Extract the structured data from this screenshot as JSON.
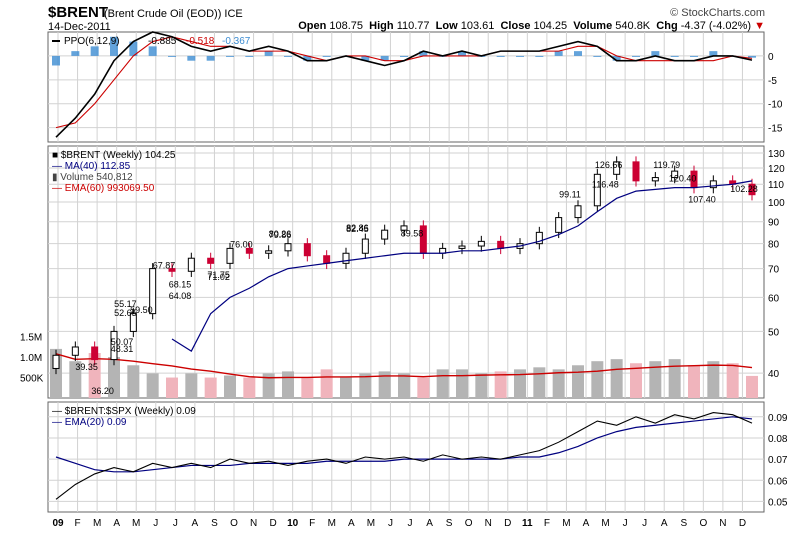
{
  "header": {
    "ticker": "$BRENT",
    "subtitle": "(Brent Crude Oil (EOD)) ICE",
    "date": "14-Dec-2011",
    "brand": "© StockCharts.com",
    "open_label": "Open",
    "open": "108.75",
    "high_label": "High",
    "high": "110.77",
    "low_label": "Low",
    "low": "103.61",
    "close_label": "Close",
    "close": "104.25",
    "volume_label": "Volume",
    "volume": "540.8K",
    "chg_label": "Chg",
    "chg": "-4.37 (-4.02%)",
    "chg_arrow": "▼"
  },
  "colors": {
    "up": "#000000",
    "down": "#cc0033",
    "ma": "#000080",
    "ema": "#cc0000",
    "vol_up": "#b4b4b4",
    "vol_down": "#f0b4bc",
    "hist": "#3c8cd2",
    "grid": "#d2d2d2"
  },
  "chart_data": [
    {
      "type": "line",
      "title": "PPO(6,12,9)",
      "legend": [
        {
          "name": "PPO(6,12,9)",
          "value": "-0.885"
        },
        {
          "name": "signal",
          "value": "-0.518"
        },
        {
          "name": "histogram",
          "value": "-0.367"
        }
      ],
      "ylim": [
        -18,
        5
      ],
      "yticks": [
        "0",
        "-5",
        "-10",
        "-15"
      ],
      "x": [
        0,
        4,
        8,
        12,
        16,
        20,
        24,
        28,
        32,
        36,
        40,
        44,
        48,
        52,
        56,
        60,
        64,
        68,
        72,
        76,
        80,
        84,
        88,
        92,
        96,
        100,
        104,
        108,
        112,
        116,
        120,
        124,
        128,
        132,
        136,
        140,
        144
      ],
      "series": [
        {
          "name": "PPO",
          "values": [
            -17,
            -13,
            -8,
            -1,
            3,
            5,
            4,
            2,
            1,
            2,
            1,
            2,
            1,
            -1,
            -1,
            0,
            -1,
            -2,
            -1,
            1,
            0,
            1,
            0,
            1,
            1,
            1,
            2,
            3,
            2,
            -1,
            -1,
            0,
            -1,
            -1,
            0,
            0,
            -0.885
          ]
        },
        {
          "name": "Signal",
          "values": [
            -15,
            -14,
            -10,
            -5,
            0,
            3,
            4,
            3,
            2,
            2,
            1,
            1,
            1,
            0,
            -1,
            0,
            0,
            -1,
            -1,
            0,
            0,
            0,
            0,
            1,
            1,
            1,
            1,
            2,
            2,
            0,
            -1,
            -1,
            -1,
            -1,
            -1,
            0,
            -0.518
          ]
        },
        {
          "name": "Histogram",
          "values": [
            -2,
            1,
            2,
            4,
            3,
            2,
            0,
            -1,
            -1,
            0,
            0,
            1,
            0,
            -1,
            0,
            0,
            -1,
            -1,
            0,
            1,
            0,
            1,
            0,
            0,
            0,
            0,
            1,
            1,
            0,
            -1,
            0,
            1,
            0,
            0,
            1,
            0,
            -0.367
          ]
        }
      ]
    },
    {
      "type": "candlestick",
      "title": "$BRENT (Weekly) 104.25",
      "legend": [
        {
          "name": "$BRENT (Weekly)",
          "value": "104.25"
        },
        {
          "name": "MA(40)",
          "value": "112.85"
        },
        {
          "name": "Volume",
          "value": "540,812"
        },
        {
          "name": "EMA(60)",
          "value": "993069.50"
        }
      ],
      "ylim": [
        35,
        135
      ],
      "yticks": [
        "130",
        "120",
        "110",
        "100",
        "90",
        "80",
        "70",
        "60",
        "50",
        "40"
      ],
      "volume_ticks": [
        "1.5M",
        "1.0M",
        "500K"
      ],
      "x": [
        0,
        4,
        8,
        12,
        16,
        20,
        24,
        28,
        32,
        36,
        40,
        44,
        48,
        52,
        56,
        60,
        64,
        68,
        72,
        76,
        80,
        84,
        88,
        92,
        96,
        100,
        104,
        108,
        112,
        116,
        120,
        124,
        128,
        132,
        136,
        140,
        144
      ],
      "close": [
        44,
        46,
        43,
        50,
        55,
        70,
        69,
        74,
        72,
        78,
        76,
        77,
        80,
        75,
        72,
        76,
        82,
        86,
        88,
        76,
        78,
        79,
        81,
        78,
        80,
        85,
        92,
        98,
        116,
        124,
        112,
        114,
        118,
        108,
        112,
        110,
        104
      ],
      "ma40": [
        null,
        null,
        null,
        null,
        null,
        null,
        48,
        45,
        55,
        60,
        63,
        67,
        70,
        71,
        72,
        73,
        74,
        75,
        76,
        76,
        76,
        77,
        77,
        78,
        79,
        81,
        84,
        88,
        95,
        102,
        106,
        107,
        108,
        108,
        109,
        110,
        112
      ],
      "volume_k": [
        1200,
        900,
        1100,
        1000,
        800,
        600,
        500,
        600,
        500,
        550,
        500,
        600,
        650,
        500,
        700,
        500,
        600,
        650,
        600,
        500,
        700,
        700,
        600,
        650,
        700,
        750,
        700,
        800,
        900,
        950,
        850,
        900,
        950,
        800,
        900,
        850,
        540
      ],
      "annotations": [
        "52.65",
        "50.07",
        "55.17",
        "48.31",
        "39.35",
        "36.20",
        "76.00",
        "59.50",
        "80.26",
        "64.08",
        "82.45",
        "71.02",
        "67.87",
        "89.58",
        "79.86",
        "68.15",
        "82.86",
        "71.75",
        "119.79",
        "107.40",
        "126.66",
        "120.40",
        "102.28",
        "116.48",
        "99.11"
      ]
    },
    {
      "type": "line",
      "title": "$BRENT:$SPX (Weekly) 0.09",
      "legend": [
        {
          "name": "$BRENT:$SPX (Weekly)",
          "value": "0.09"
        },
        {
          "name": "EMA(20)",
          "value": "0.09"
        }
      ],
      "ylim": [
        0.045,
        0.097
      ],
      "yticks": [
        "0.09",
        "0.08",
        "0.07",
        "0.06",
        "0.05"
      ],
      "x": [
        0,
        4,
        8,
        12,
        16,
        20,
        24,
        28,
        32,
        36,
        40,
        44,
        48,
        52,
        56,
        60,
        64,
        68,
        72,
        76,
        80,
        84,
        88,
        92,
        96,
        100,
        104,
        108,
        112,
        116,
        120,
        124,
        128,
        132,
        136,
        140,
        144
      ],
      "series": [
        {
          "name": "Ratio",
          "values": [
            0.051,
            0.058,
            0.063,
            0.066,
            0.064,
            0.068,
            0.066,
            0.068,
            0.066,
            0.07,
            0.068,
            0.069,
            0.067,
            0.069,
            0.07,
            0.068,
            0.071,
            0.07,
            0.071,
            0.069,
            0.072,
            0.07,
            0.071,
            0.07,
            0.072,
            0.074,
            0.078,
            0.083,
            0.088,
            0.086,
            0.09,
            0.087,
            0.091,
            0.089,
            0.092,
            0.091,
            0.087
          ]
        },
        {
          "name": "EMA(20)",
          "values": [
            0.071,
            0.068,
            0.065,
            0.064,
            0.064,
            0.065,
            0.066,
            0.067,
            0.067,
            0.067,
            0.068,
            0.068,
            0.068,
            0.068,
            0.069,
            0.069,
            0.069,
            0.069,
            0.07,
            0.07,
            0.07,
            0.07,
            0.07,
            0.07,
            0.071,
            0.071,
            0.073,
            0.076,
            0.08,
            0.083,
            0.085,
            0.086,
            0.087,
            0.088,
            0.089,
            0.09,
            0.089
          ]
        }
      ]
    },
    {
      "type": "axis",
      "months": [
        "09",
        "F",
        "M",
        "A",
        "M",
        "J",
        "J",
        "A",
        "S",
        "O",
        "N",
        "D",
        "10",
        "F",
        "M",
        "A",
        "M",
        "J",
        "J",
        "A",
        "S",
        "O",
        "N",
        "D",
        "11",
        "F",
        "M",
        "A",
        "M",
        "J",
        "J",
        "A",
        "S",
        "O",
        "N",
        "D"
      ],
      "bold_months": [
        "09",
        "10",
        "11"
      ]
    }
  ]
}
